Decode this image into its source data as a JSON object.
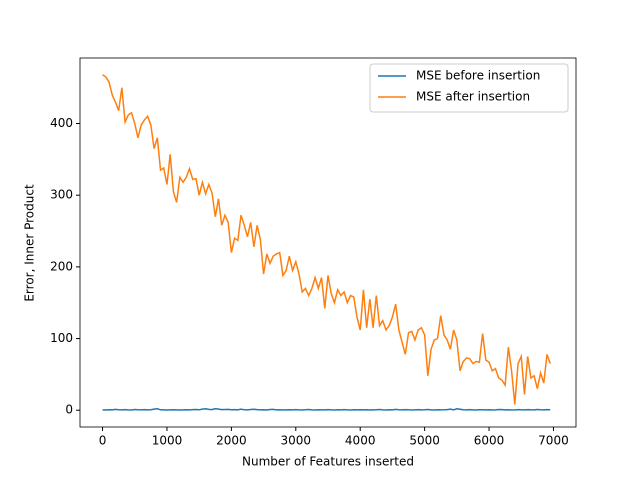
{
  "chart_data": {
    "type": "line",
    "x_label": "Number of Features inserted",
    "y_label": "Error, Inner Product",
    "x": [
      0,
      50,
      100,
      150,
      200,
      250,
      300,
      350,
      400,
      450,
      500,
      550,
      600,
      650,
      700,
      750,
      800,
      850,
      900,
      950,
      1000,
      1050,
      1100,
      1150,
      1200,
      1250,
      1300,
      1350,
      1400,
      1450,
      1500,
      1550,
      1600,
      1650,
      1700,
      1750,
      1800,
      1850,
      1900,
      1950,
      2000,
      2050,
      2100,
      2150,
      2200,
      2250,
      2300,
      2350,
      2400,
      2450,
      2500,
      2550,
      2600,
      2650,
      2700,
      2750,
      2800,
      2850,
      2900,
      2950,
      3000,
      3050,
      3100,
      3150,
      3200,
      3250,
      3300,
      3350,
      3400,
      3450,
      3500,
      3550,
      3600,
      3650,
      3700,
      3750,
      3800,
      3850,
      3900,
      3950,
      4000,
      4050,
      4100,
      4150,
      4200,
      4250,
      4300,
      4350,
      4400,
      4450,
      4500,
      4550,
      4600,
      4650,
      4700,
      4750,
      4800,
      4850,
      4900,
      4950,
      5000,
      5050,
      5100,
      5150,
      5200,
      5250,
      5300,
      5350,
      5400,
      5450,
      5500,
      5550,
      5600,
      5650,
      5700,
      5750,
      5800,
      5850,
      5900,
      5950,
      6000,
      6050,
      6100,
      6150,
      6200,
      6250,
      6300,
      6350,
      6400,
      6450,
      6500,
      6550,
      6600,
      6650,
      6700,
      6750,
      6800,
      6850,
      6900,
      6950
    ],
    "series": [
      {
        "name": "MSE before insertion",
        "color": "#1f77b4",
        "values": [
          0.5,
          0.4,
          0.6,
          0.5,
          1.2,
          0.6,
          0.5,
          0.8,
          0.5,
          0.4,
          1.0,
          0.6,
          0.5,
          0.9,
          0.5,
          0.7,
          1.5,
          2.0,
          0.6,
          0.5,
          0.4,
          0.5,
          0.6,
          0.5,
          0.4,
          0.5,
          0.6,
          0.5,
          0.8,
          1.0,
          0.6,
          1.5,
          2.0,
          1.2,
          0.8,
          2.2,
          1.5,
          0.8,
          1.0,
          1.2,
          0.6,
          0.8,
          0.5,
          1.5,
          0.6,
          0.5,
          1.0,
          1.3,
          0.8,
          0.5,
          0.6,
          0.4,
          1.0,
          1.2,
          0.5,
          0.6,
          0.4,
          0.5,
          0.7,
          0.5,
          0.8,
          0.5,
          0.4,
          0.6,
          1.0,
          0.5,
          0.4,
          0.6,
          0.5,
          0.5,
          0.8,
          0.5,
          0.4,
          0.6,
          0.5,
          0.9,
          0.5,
          0.4,
          0.6,
          0.5,
          0.7,
          0.5,
          0.6,
          0.4,
          0.5,
          0.6,
          1.0,
          0.5,
          0.4,
          0.6,
          0.5,
          1.2,
          0.6,
          0.5,
          0.9,
          0.6,
          0.4,
          0.5,
          0.8,
          0.5,
          0.6,
          1.0,
          0.5,
          0.4,
          0.6,
          0.5,
          0.6,
          0.8,
          1.5,
          0.6,
          2.0,
          1.4,
          0.6,
          0.5,
          0.8,
          0.5,
          0.4,
          0.7,
          0.6,
          0.5,
          0.6,
          0.4,
          0.5,
          1.0,
          0.8,
          0.5,
          0.6,
          0.4,
          0.5,
          0.9,
          0.6,
          0.5,
          0.8,
          0.6,
          0.5,
          1.0,
          0.6,
          0.5,
          0.9,
          0.6
        ]
      },
      {
        "name": "MSE after insertion",
        "color": "#ff7f0e",
        "values": [
          468,
          465,
          458,
          440,
          430,
          418,
          450,
          402,
          412,
          415,
          400,
          380,
          398,
          405,
          410,
          398,
          365,
          380,
          335,
          338,
          315,
          357,
          305,
          290,
          325,
          318,
          325,
          337,
          322,
          323,
          300,
          318,
          302,
          315,
          303,
          270,
          295,
          258,
          272,
          262,
          220,
          240,
          237,
          272,
          258,
          242,
          262,
          228,
          258,
          238,
          190,
          218,
          205,
          215,
          218,
          220,
          188,
          195,
          215,
          195,
          207,
          190,
          165,
          170,
          160,
          170,
          185,
          170,
          185,
          142,
          188,
          163,
          150,
          168,
          160,
          165,
          150,
          160,
          158,
          130,
          112,
          168,
          115,
          155,
          115,
          160,
          118,
          125,
          112,
          118,
          130,
          148,
          112,
          95,
          78,
          108,
          110,
          98,
          112,
          115,
          105,
          48,
          85,
          98,
          100,
          132,
          105,
          98,
          85,
          112,
          98,
          55,
          68,
          73,
          72,
          65,
          68,
          67,
          107,
          70,
          67,
          55,
          58,
          45,
          42,
          35,
          88,
          55,
          8,
          65,
          75,
          22,
          75,
          45,
          48,
          30,
          52,
          38,
          78,
          65
        ]
      }
    ],
    "xlim": [
      -350,
      7350
    ],
    "ylim": [
      -23.4,
      491.4
    ],
    "xticks": [
      0,
      1000,
      2000,
      3000,
      4000,
      5000,
      6000,
      7000
    ],
    "yticks": [
      0,
      100,
      200,
      300,
      400
    ],
    "legend": "upper right"
  }
}
